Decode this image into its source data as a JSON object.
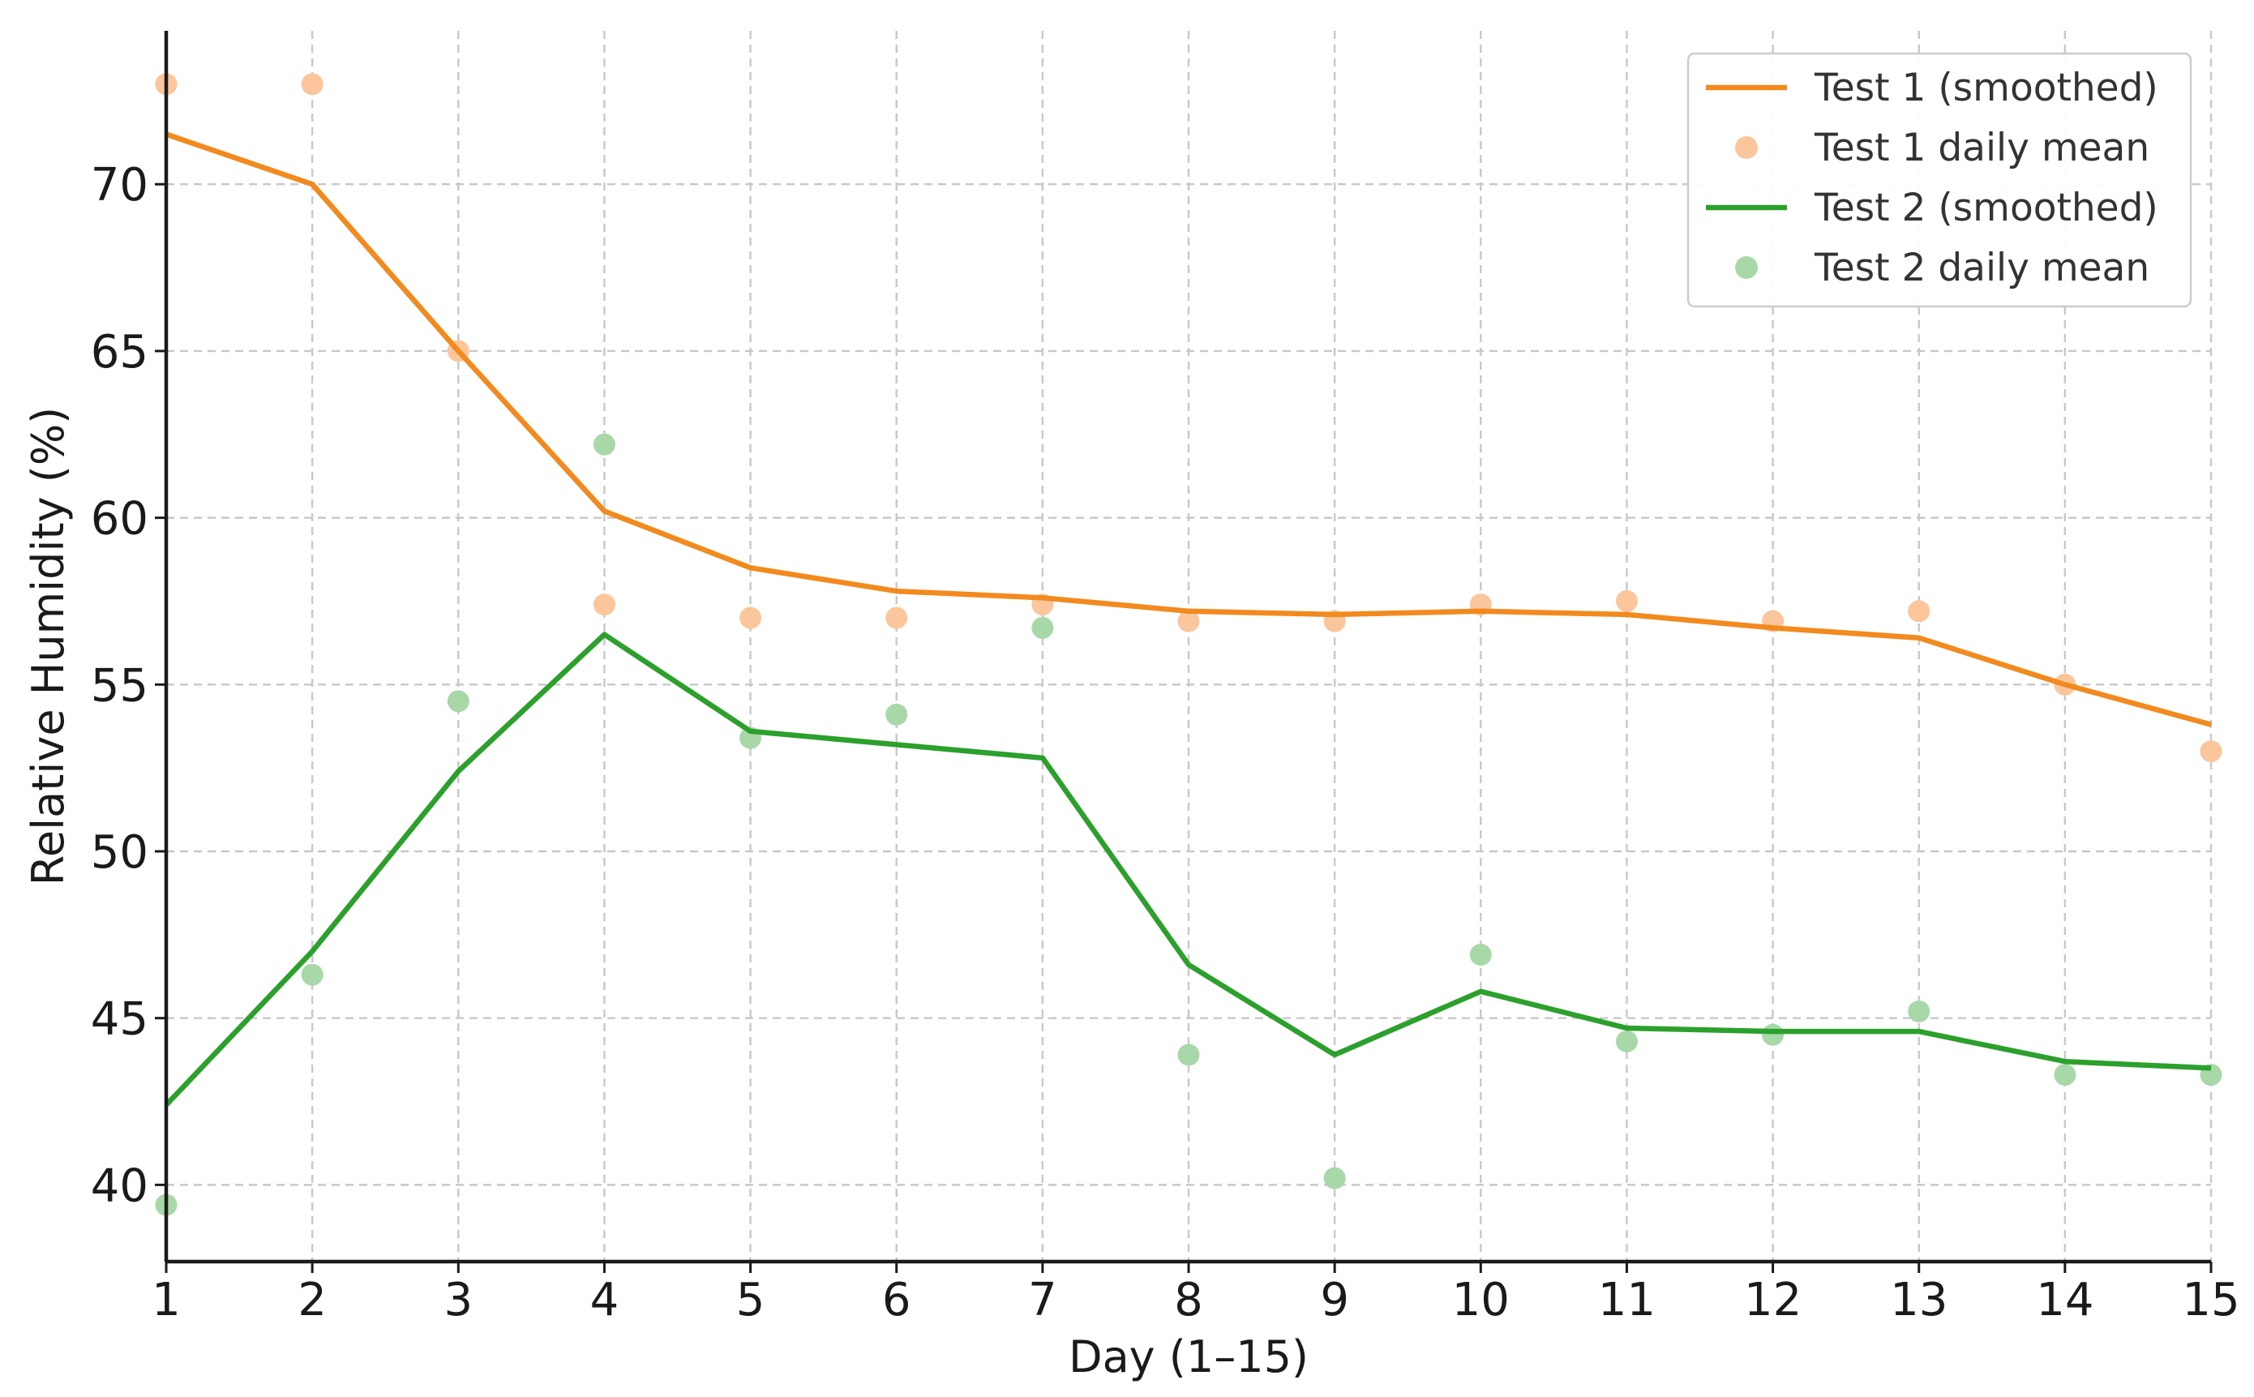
{
  "chart_data": {
    "type": "line",
    "title": "",
    "xlabel": "Day (1–15)",
    "ylabel": "Relative Humidity (%)",
    "xlim": [
      1,
      15
    ],
    "ylim": [
      37.7,
      74.6
    ],
    "xticks": [
      1,
      2,
      3,
      4,
      5,
      6,
      7,
      8,
      9,
      10,
      11,
      12,
      13,
      14,
      15
    ],
    "yticks": [
      40,
      45,
      50,
      55,
      60,
      65,
      70
    ],
    "grid": true,
    "legend_position": "top-right",
    "x": [
      1,
      2,
      3,
      4,
      5,
      6,
      7,
      8,
      9,
      10,
      11,
      12,
      13,
      14,
      15
    ],
    "series": [
      {
        "name": "Test 1 (smoothed)",
        "kind": "line",
        "color": "#f28a1e",
        "values": [
          71.5,
          70.0,
          65.0,
          60.2,
          58.5,
          57.8,
          57.6,
          57.2,
          57.1,
          57.2,
          57.1,
          56.7,
          56.4,
          55.0,
          53.8
        ]
      },
      {
        "name": "Test 1 daily mean",
        "kind": "scatter",
        "color": "#fbc69b",
        "values": [
          73.0,
          73.0,
          65.0,
          57.4,
          57.0,
          57.0,
          57.4,
          56.9,
          56.9,
          57.4,
          57.5,
          56.9,
          57.2,
          55.0,
          53.0
        ]
      },
      {
        "name": "Test 2 (smoothed)",
        "kind": "line",
        "color": "#2ca02c",
        "values": [
          42.4,
          47.0,
          52.4,
          56.5,
          53.6,
          53.2,
          52.8,
          46.6,
          43.9,
          45.8,
          44.7,
          44.6,
          44.6,
          43.7,
          43.5
        ]
      },
      {
        "name": "Test 2 daily mean",
        "kind": "scatter",
        "color": "#a8d8a8",
        "values": [
          39.4,
          46.3,
          54.5,
          62.2,
          53.4,
          54.1,
          56.7,
          43.9,
          40.2,
          46.9,
          44.3,
          44.5,
          45.2,
          43.3,
          43.3
        ]
      }
    ]
  }
}
